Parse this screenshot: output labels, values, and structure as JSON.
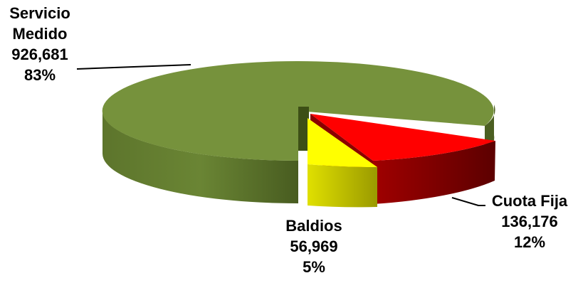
{
  "chart_data": {
    "type": "pie",
    "title": "",
    "slices": [
      {
        "name": "Servicio Medido",
        "value": 926681,
        "value_label": "926,681",
        "percent_label": "83%",
        "color": "#76923c",
        "side_color": "#4f6228"
      },
      {
        "name": "Cuota Fija",
        "value": 136176,
        "value_label": "136,176",
        "percent_label": "12%",
        "color": "#ff0000",
        "side_color": "#7a0000"
      },
      {
        "name": "Baldios",
        "value": 56969,
        "value_label": "56,969",
        "percent_label": "5%",
        "color": "#ffff00",
        "side_color": "#a6a600"
      }
    ],
    "legend": "none",
    "exploded": [
      "Cuota Fija",
      "Baldios"
    ]
  },
  "labels": {
    "servicio_medido": {
      "line1": "Servicio",
      "line2": "Medido",
      "value": "926,681",
      "percent": "83%"
    },
    "cuota_fija": {
      "line1": "Cuota Fija",
      "value": "136,176",
      "percent": "12%"
    },
    "baldios": {
      "line1": "Baldios",
      "value": "56,969",
      "percent": "5%"
    }
  }
}
